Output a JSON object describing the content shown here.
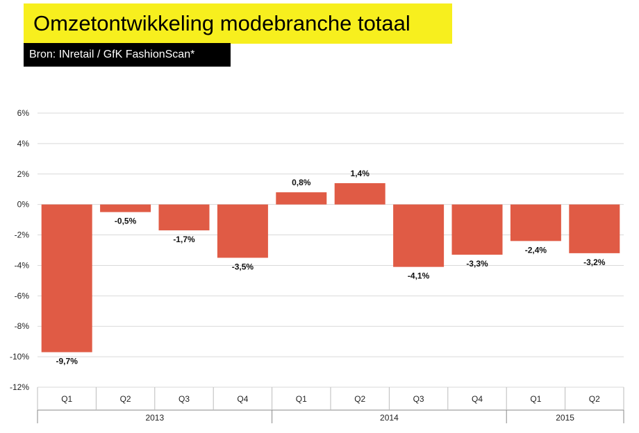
{
  "header": {
    "title": "Omzetontwikkeling modebranche totaal",
    "source": "Bron: INretail / GfK FashionScan*"
  },
  "colors": {
    "title_bg": "#f7ef1e",
    "source_bg": "#000000",
    "bar": "#e05b45",
    "grid": "#d9d9d9"
  },
  "chart_data": {
    "type": "bar",
    "title": "Omzetontwikkeling modebranche totaal",
    "xlabel": "",
    "ylabel": "",
    "ylim": [
      -12,
      6
    ],
    "y_ticks": [
      6,
      4,
      2,
      0,
      -2,
      -4,
      -6,
      -8,
      -10,
      -12
    ],
    "y_tick_labels": [
      "6%",
      "4%",
      "2%",
      "0%",
      "-2%",
      "-4%",
      "-6%",
      "-8%",
      "-10%",
      "-12%"
    ],
    "grid": true,
    "categories": [
      "Q1",
      "Q2",
      "Q3",
      "Q4",
      "Q1",
      "Q2",
      "Q3",
      "Q4",
      "Q1",
      "Q2"
    ],
    "groups": [
      {
        "label": "2013",
        "count": 4
      },
      {
        "label": "2014",
        "count": 4
      },
      {
        "label": "2015",
        "count": 2
      }
    ],
    "values": [
      -9.7,
      -0.5,
      -1.7,
      -3.5,
      0.8,
      1.4,
      -4.1,
      -3.3,
      -2.4,
      -3.2
    ],
    "value_labels": [
      "-9,7%",
      "-0,5%",
      "-1,7%",
      "-3,5%",
      "0,8%",
      "1,4%",
      "-4,1%",
      "-3,3%",
      "-2,4%",
      "-3,2%"
    ]
  }
}
